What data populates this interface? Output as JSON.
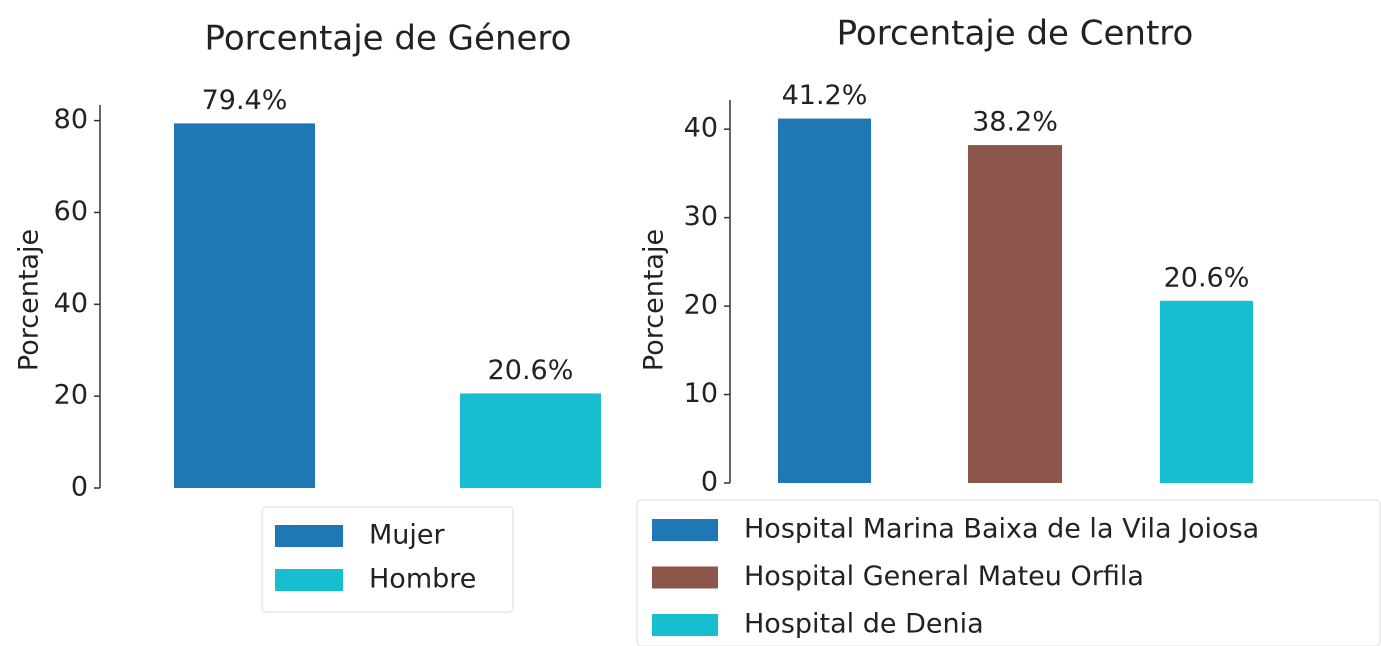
{
  "chart_data": [
    {
      "type": "bar",
      "title": "Porcentaje de Género",
      "y_label": "Porcentaje",
      "series": [
        {
          "name": "Mujer",
          "color": "#1f77b4",
          "values": [
            79.4
          ],
          "value_labels": [
            "79.4%"
          ]
        },
        {
          "name": "Hombre",
          "color": "#17becf",
          "values": [
            20.6
          ],
          "value_labels": [
            "20.6%"
          ]
        }
      ],
      "ylim": [
        0,
        83.4
      ],
      "yticks": [
        0,
        20,
        40,
        60,
        80
      ],
      "grid": false
    },
    {
      "type": "bar",
      "title": "Porcentaje de Centro",
      "y_label": "Porcentaje",
      "series": [
        {
          "name": "Hospital Marina Baixa de la Vila Joiosa",
          "color": "#1f77b4",
          "values": [
            41.2
          ],
          "value_labels": [
            "41.2%"
          ]
        },
        {
          "name": "Hospital General Mateu Orfila",
          "color": "#8c564b",
          "values": [
            38.2
          ],
          "value_labels": [
            "38.2%"
          ]
        },
        {
          "name": "Hospital de Denia",
          "color": "#17becf",
          "values": [
            20.6
          ],
          "value_labels": [
            "20.6%"
          ]
        }
      ],
      "ylim": [
        0,
        43.3
      ],
      "yticks": [
        0,
        10,
        20,
        30,
        40
      ],
      "grid": false
    }
  ]
}
